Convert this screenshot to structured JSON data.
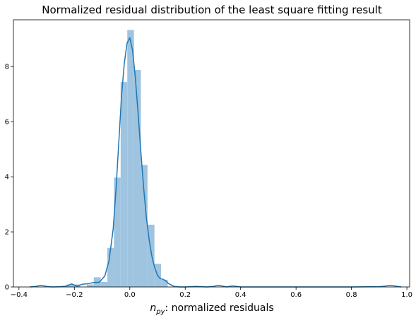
{
  "chart_data": {
    "type": "histogram",
    "title": "Normalized residual distribution of the least square fitting result",
    "xlabel_symbol": "n",
    "xlabel_subscript": "py",
    "xlabel_rest": ": normalized residuals",
    "ylabel": "",
    "xlim": [
      -0.42,
      1.01
    ],
    "ylim": [
      0,
      9.7
    ],
    "xticks": [
      -0.4,
      -0.2,
      0.0,
      0.2,
      0.4,
      0.6,
      0.8,
      1.0
    ],
    "xtick_labels": [
      "−0.4",
      "−0.2",
      "0.0",
      "0.2",
      "0.4",
      "0.6",
      "0.8",
      "1.0"
    ],
    "yticks": [
      0,
      2,
      4,
      6,
      8
    ],
    "ytick_labels": [
      "0",
      "2",
      "4",
      "6",
      "8"
    ],
    "grid": false,
    "bar_color": "#9ec4e0",
    "line_color": "#1f77b4",
    "bins": [
      {
        "x0": -0.23,
        "x1": -0.205,
        "value": 0.09
      },
      {
        "x0": -0.205,
        "x1": -0.18,
        "value": 0.09
      },
      {
        "x0": -0.155,
        "x1": -0.13,
        "value": 0.09
      },
      {
        "x0": -0.13,
        "x1": -0.105,
        "value": 0.35
      },
      {
        "x0": -0.105,
        "x1": -0.081,
        "value": 0.18
      },
      {
        "x0": -0.081,
        "x1": -0.057,
        "value": 1.42
      },
      {
        "x0": -0.057,
        "x1": -0.033,
        "value": 3.97
      },
      {
        "x0": -0.033,
        "x1": -0.009,
        "value": 7.44
      },
      {
        "x0": -0.009,
        "x1": 0.015,
        "value": 9.33
      },
      {
        "x0": 0.015,
        "x1": 0.04,
        "value": 7.88
      },
      {
        "x0": 0.04,
        "x1": 0.064,
        "value": 4.43
      },
      {
        "x0": 0.064,
        "x1": 0.089,
        "value": 2.26
      },
      {
        "x0": 0.089,
        "x1": 0.113,
        "value": 0.84
      },
      {
        "x0": 0.113,
        "x1": 0.137,
        "value": 0.26
      }
    ],
    "kde": {
      "x": [
        -0.36,
        -0.34,
        -0.32,
        -0.3,
        -0.28,
        -0.25,
        -0.23,
        -0.21,
        -0.19,
        -0.17,
        -0.15,
        -0.13,
        -0.11,
        -0.09,
        -0.075,
        -0.06,
        -0.05,
        -0.04,
        -0.03,
        -0.02,
        -0.01,
        0.0,
        0.01,
        0.02,
        0.03,
        0.04,
        0.05,
        0.06,
        0.07,
        0.08,
        0.09,
        0.1,
        0.11,
        0.12,
        0.13,
        0.14,
        0.16,
        0.18,
        0.2,
        0.24,
        0.28,
        0.3,
        0.32,
        0.35,
        0.37,
        0.4,
        0.5,
        0.6,
        0.7,
        0.8,
        0.9,
        0.92,
        0.94,
        0.96,
        0.98
      ],
      "y": [
        0.0,
        0.02,
        0.06,
        0.02,
        0.0,
        0.01,
        0.03,
        0.11,
        0.03,
        0.1,
        0.12,
        0.16,
        0.17,
        0.4,
        0.95,
        2.1,
        3.5,
        5.2,
        6.9,
        8.1,
        8.85,
        9.05,
        8.6,
        7.6,
        6.3,
        4.9,
        3.6,
        2.5,
        1.7,
        1.1,
        0.7,
        0.42,
        0.3,
        0.28,
        0.22,
        0.12,
        0.02,
        0.0,
        0.0,
        0.02,
        0.0,
        0.02,
        0.06,
        0.0,
        0.04,
        0.0,
        0.0,
        0.0,
        0.0,
        0.0,
        0.01,
        0.03,
        0.06,
        0.03,
        0.0
      ]
    }
  }
}
